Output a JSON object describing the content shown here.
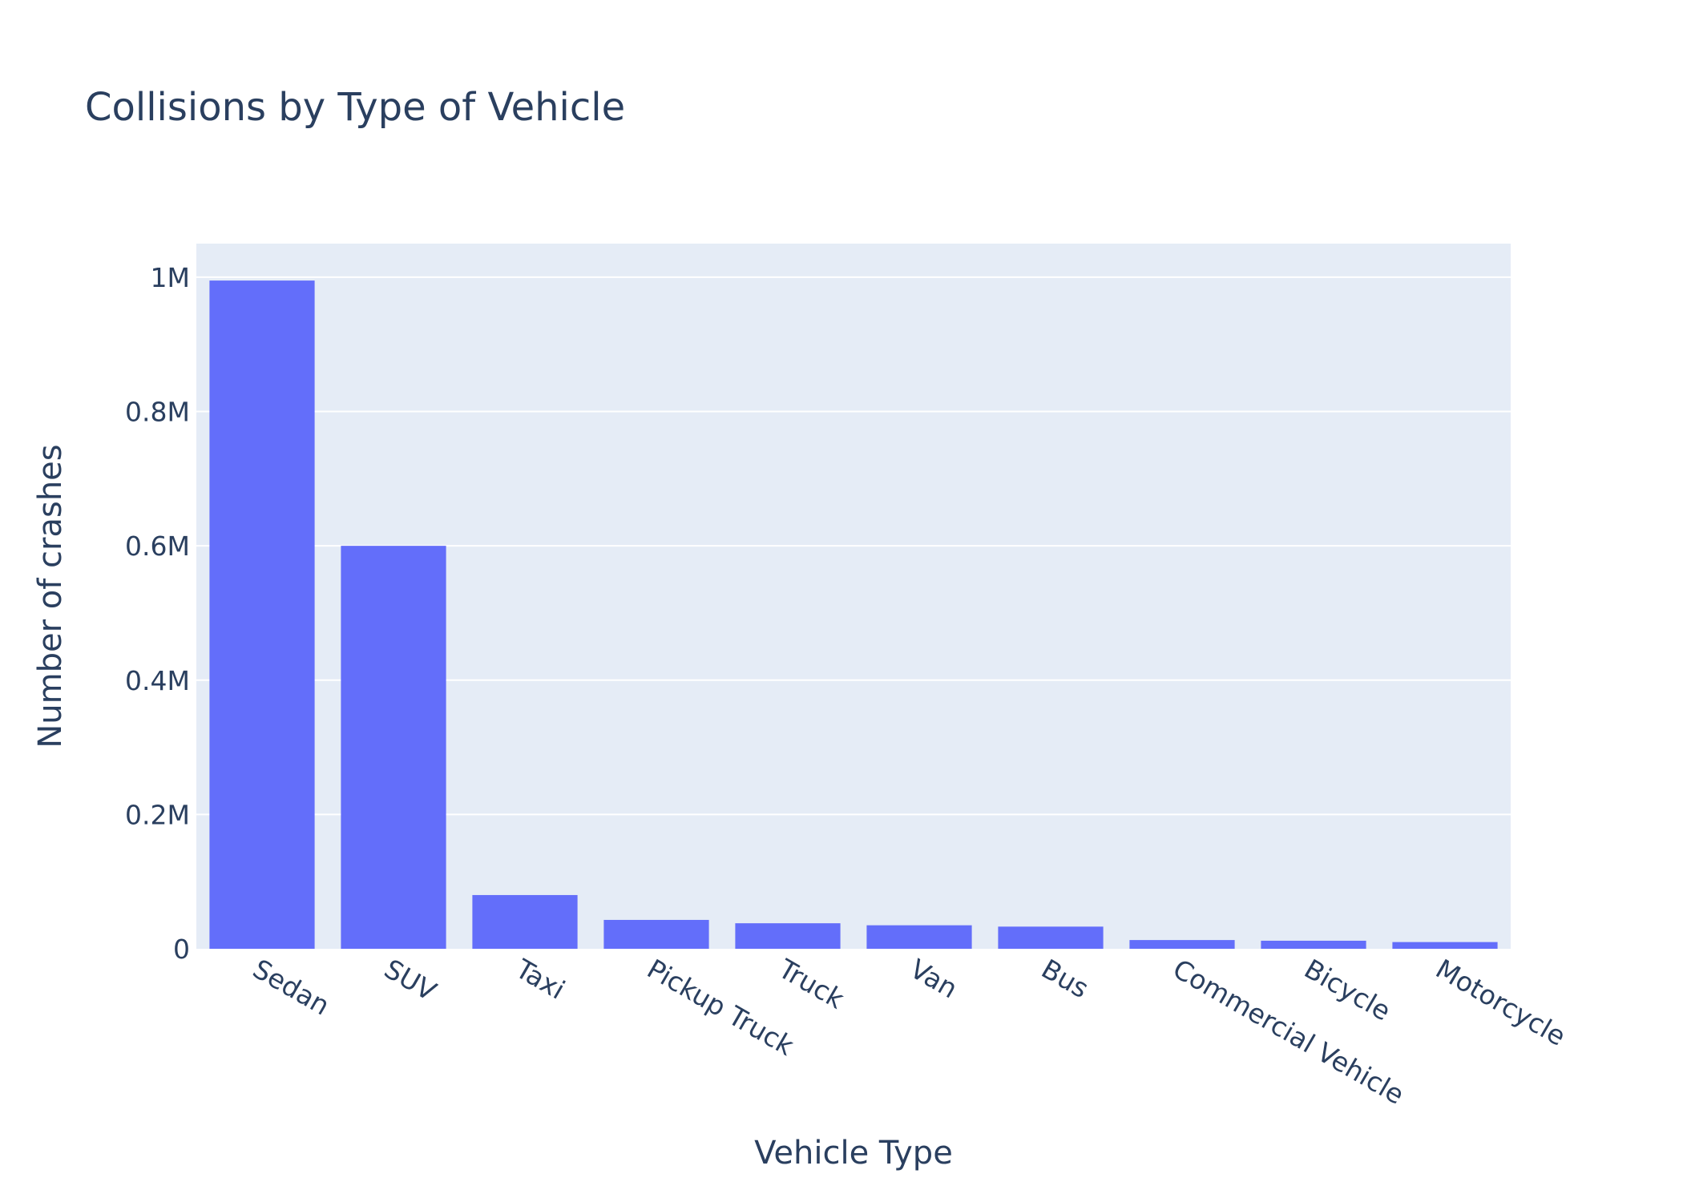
{
  "chart_data": {
    "type": "bar",
    "title": "Collisions by Type of Vehicle",
    "xlabel": "Vehicle Type",
    "ylabel": "Number of crashes",
    "categories": [
      "Sedan",
      "SUV",
      "Taxi",
      "Pickup Truck",
      "Truck",
      "Van",
      "Bus",
      "Commercial Vehicle",
      "Bicycle",
      "Motorcycle"
    ],
    "values": [
      995000,
      600000,
      80000,
      43000,
      38000,
      35000,
      33000,
      13000,
      12000,
      10000
    ],
    "ylim": [
      0,
      1050000
    ],
    "yticks": [
      0,
      200000,
      400000,
      600000,
      800000,
      1000000
    ],
    "ytick_labels": [
      "0",
      "0.2M",
      "0.4M",
      "0.6M",
      "0.8M",
      "1M"
    ],
    "grid": true,
    "colors": {
      "bar": "#636efa",
      "plot_bg": "#e5ecf6",
      "grid": "#ffffff",
      "text": "#2a3f5f"
    }
  }
}
